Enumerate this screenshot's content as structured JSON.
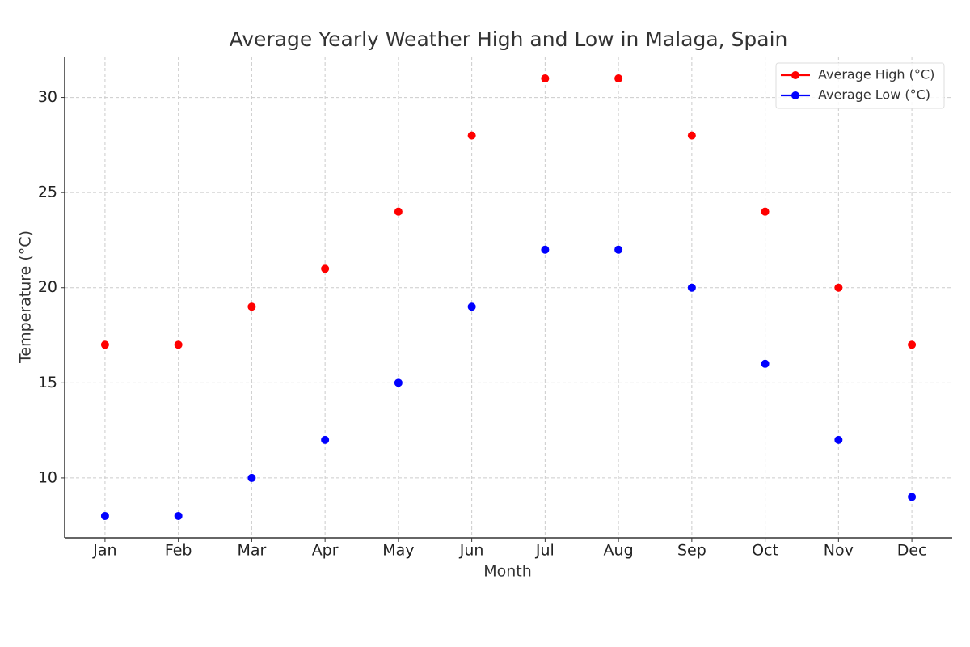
{
  "chart_data": {
    "type": "line",
    "title": "Average Yearly Weather High and Low in Malaga, Spain",
    "xlabel": "Month",
    "ylabel": "Temperature (°C)",
    "categories": [
      "Jan",
      "Feb",
      "Mar",
      "Apr",
      "May",
      "Jun",
      "Jul",
      "Aug",
      "Sep",
      "Oct",
      "Nov",
      "Dec"
    ],
    "series": [
      {
        "name": "Average High (°C)",
        "color": "#ff0000",
        "values": [
          17,
          17,
          19,
          21,
          24,
          28,
          31,
          31,
          28,
          24,
          20,
          17
        ]
      },
      {
        "name": "Average Low (°C)",
        "color": "#0000ff",
        "values": [
          8,
          8,
          10,
          12,
          15,
          19,
          22,
          22,
          20,
          16,
          12,
          9
        ]
      }
    ],
    "ylim": [
      6.85,
      32.15
    ],
    "yticks": [
      10,
      15,
      20,
      25,
      30
    ],
    "grid": true,
    "legend": "upper-right"
  }
}
